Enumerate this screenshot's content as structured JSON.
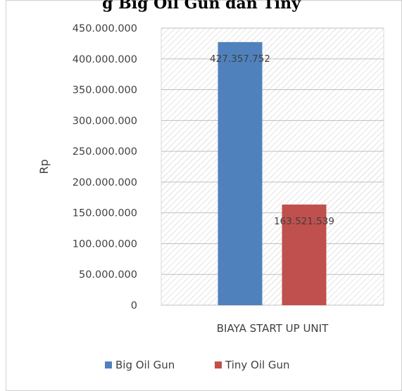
{
  "title_fragment": "g Big Oil Gun dan Tiny",
  "chart_data": {
    "type": "bar",
    "title": "",
    "xlabel": "",
    "ylabel": "Rp",
    "categories": [
      "BIAYA START UP UNIT"
    ],
    "series": [
      {
        "name": "Big Oil Gun",
        "values": [
          427357752
        ],
        "label": "427.357.752",
        "color": "#4f81bd"
      },
      {
        "name": "Tiny Oil Gun",
        "values": [
          163521539
        ],
        "label": "163.521.539",
        "color": "#c0504d"
      }
    ],
    "ylim": [
      0,
      450000000
    ],
    "yticks": [
      {
        "value": 0,
        "label": "0"
      },
      {
        "value": 50000000,
        "label": "50.000.000"
      },
      {
        "value": 100000000,
        "label": "100.000.000"
      },
      {
        "value": 150000000,
        "label": "150.000.000"
      },
      {
        "value": 200000000,
        "label": "200.000.000"
      },
      {
        "value": 250000000,
        "label": "250.000.000"
      },
      {
        "value": 300000000,
        "label": "300.000.000"
      },
      {
        "value": 350000000,
        "label": "350.000.000"
      },
      {
        "value": 400000000,
        "label": "400.000.000"
      },
      {
        "value": 450000000,
        "label": "450.000.000"
      }
    ],
    "grid": true,
    "legend": "bottom"
  }
}
